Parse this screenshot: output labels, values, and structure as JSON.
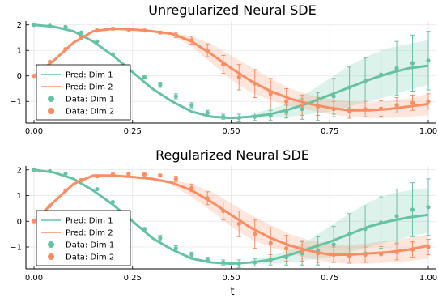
{
  "colors": {
    "dim1": "#66c2a5",
    "dim2": "#fc8d62"
  },
  "chart_data": [
    {
      "type": "line",
      "title": "Unregularized Neural SDE",
      "xlabel": "",
      "xlim": [
        0,
        1
      ],
      "ylim": [
        -1.85,
        2.15
      ],
      "xticks": [
        "0.00",
        "0.25",
        "0.50",
        "0.75",
        "1.00"
      ],
      "yticks": [
        "2",
        "1",
        "0",
        "−1"
      ],
      "grid": true,
      "legend_position": "bottom-left",
      "legend": [
        "Pred: Dim 1",
        "Pred: Dim 2",
        "Data: Dim 1",
        "Data: Dim 2"
      ],
      "pred": {
        "dim1": {
          "x": [
            0.0,
            0.05,
            0.1,
            0.15,
            0.2,
            0.25,
            0.3,
            0.35,
            0.4,
            0.45,
            0.5,
            0.55,
            0.6,
            0.65,
            0.7,
            0.75,
            0.8,
            0.85,
            0.9,
            0.95,
            1.0
          ],
          "y": [
            2.0,
            1.93,
            1.75,
            1.35,
            0.8,
            0.15,
            -0.5,
            -1.0,
            -1.4,
            -1.6,
            -1.65,
            -1.6,
            -1.5,
            -1.3,
            -1.05,
            -0.75,
            -0.45,
            -0.15,
            0.1,
            0.3,
            0.4
          ]
        },
        "dim2": {
          "x": [
            0.0,
            0.05,
            0.1,
            0.15,
            0.2,
            0.25,
            0.3,
            0.35,
            0.4,
            0.45,
            0.5,
            0.55,
            0.6,
            0.65,
            0.7,
            0.75,
            0.8,
            0.85,
            0.9,
            0.95,
            1.0
          ],
          "y": [
            0.0,
            0.6,
            1.3,
            1.75,
            1.85,
            1.82,
            1.75,
            1.65,
            1.35,
            0.85,
            0.3,
            -0.2,
            -0.6,
            -0.9,
            -1.1,
            -1.25,
            -1.35,
            -1.35,
            -1.3,
            -1.2,
            -1.1
          ]
        },
        "band1": {
          "x": [
            0.55,
            0.6,
            0.65,
            0.7,
            0.75,
            0.8,
            0.85,
            0.9,
            0.95,
            1.0
          ],
          "lo": [
            -1.65,
            -1.65,
            -1.6,
            -1.5,
            -1.4,
            -1.2,
            -1.0,
            -0.8,
            -0.55,
            -0.35
          ],
          "hi": [
            -1.5,
            -1.3,
            -1.05,
            -0.6,
            -0.1,
            0.4,
            0.8,
            1.1,
            1.25,
            1.4
          ]
        },
        "band2": {
          "x": [
            0.35,
            0.4,
            0.45,
            0.5,
            0.55,
            0.6,
            0.65,
            0.7,
            0.75,
            0.8,
            0.85,
            0.9,
            0.95,
            1.0
          ],
          "lo": [
            1.6,
            1.15,
            0.5,
            -0.15,
            -0.65,
            -0.95,
            -1.2,
            -1.35,
            -1.5,
            -1.6,
            -1.65,
            -1.65,
            -1.6,
            -1.55
          ],
          "hi": [
            1.7,
            1.55,
            1.25,
            0.8,
            0.35,
            -0.1,
            -0.5,
            -0.75,
            -0.9,
            -1.0,
            -1.05,
            -0.98,
            -0.88,
            -0.7
          ]
        }
      },
      "data": {
        "dim1": {
          "x": [
            0.0,
            0.04,
            0.08,
            0.12,
            0.16,
            0.2,
            0.24,
            0.28,
            0.32,
            0.36,
            0.4,
            0.44,
            0.48,
            0.52,
            0.56,
            0.6,
            0.64,
            0.68,
            0.72,
            0.76,
            0.8,
            0.84,
            0.88,
            0.92,
            0.96,
            1.0
          ],
          "y": [
            2.0,
            1.97,
            1.92,
            1.7,
            1.35,
            0.85,
            0.35,
            -0.05,
            -0.35,
            -0.8,
            -1.15,
            -1.45,
            -1.6,
            -1.65,
            -1.6,
            -1.55,
            -1.4,
            -1.3,
            -1.2,
            -0.8,
            -0.45,
            -0.2,
            0.05,
            0.3,
            0.5,
            0.6
          ],
          "err": [
            0,
            0,
            0,
            0,
            0,
            0,
            0.05,
            0.05,
            0.1,
            0.1,
            0.1,
            0.1,
            0.1,
            0.15,
            0.15,
            0.2,
            0.25,
            0.4,
            0.55,
            0.7,
            0.8,
            0.9,
            1.0,
            1.05,
            1.1,
            1.15
          ]
        },
        "dim2": {
          "x": [
            0.0,
            0.04,
            0.08,
            0.12,
            0.16,
            0.2,
            0.24,
            0.28,
            0.32,
            0.36,
            0.4,
            0.44,
            0.48,
            0.52,
            0.56,
            0.6,
            0.64,
            0.68,
            0.72,
            0.76,
            0.8,
            0.84,
            0.88,
            0.92,
            0.96,
            1.0
          ],
          "y": [
            0.0,
            0.55,
            1.05,
            1.5,
            1.78,
            1.85,
            1.82,
            1.78,
            1.7,
            1.6,
            1.4,
            1.0,
            0.45,
            -0.05,
            -0.3,
            -0.7,
            -1.0,
            -1.15,
            -1.2,
            -1.3,
            -1.38,
            -1.3,
            -1.28,
            -1.15,
            -1.05,
            -1.0
          ],
          "err": [
            0,
            0,
            0.05,
            0.05,
            0.05,
            0.05,
            0.05,
            0.05,
            0.05,
            0.1,
            0.15,
            0.25,
            0.35,
            0.5,
            0.55,
            0.6,
            0.5,
            0.4,
            0.35,
            0.3,
            0.28,
            0.3,
            0.3,
            0.3,
            0.3,
            0.3
          ]
        }
      }
    },
    {
      "type": "line",
      "title": "Regularized Neural SDE",
      "xlabel": "t",
      "xlim": [
        0,
        1
      ],
      "ylim": [
        -1.85,
        2.15
      ],
      "xticks": [
        "0.00",
        "0.25",
        "0.50",
        "0.75",
        "1.00"
      ],
      "yticks": [
        "2",
        "1",
        "0",
        "−1"
      ],
      "grid": true,
      "legend_position": "bottom-left",
      "legend": [
        "Pred: Dim 1",
        "Pred: Dim 2",
        "Data: Dim 1",
        "Data: Dim 2"
      ],
      "pred": {
        "dim1": {
          "x": [
            0.0,
            0.05,
            0.1,
            0.15,
            0.2,
            0.25,
            0.3,
            0.35,
            0.4,
            0.45,
            0.5,
            0.55,
            0.6,
            0.65,
            0.7,
            0.75,
            0.8,
            0.85,
            0.9,
            0.95,
            1.0
          ],
          "y": [
            2.0,
            1.9,
            1.65,
            1.2,
            0.65,
            0.0,
            -0.65,
            -1.1,
            -1.45,
            -1.6,
            -1.65,
            -1.6,
            -1.5,
            -1.3,
            -1.05,
            -0.8,
            -0.5,
            -0.2,
            0.0,
            0.15,
            0.25
          ]
        },
        "dim2": {
          "x": [
            0.0,
            0.05,
            0.1,
            0.15,
            0.2,
            0.25,
            0.3,
            0.35,
            0.4,
            0.45,
            0.5,
            0.55,
            0.6,
            0.65,
            0.7,
            0.75,
            0.8,
            0.85,
            0.9,
            0.95,
            1.0
          ],
          "y": [
            0.0,
            0.75,
            1.45,
            1.78,
            1.78,
            1.72,
            1.65,
            1.5,
            1.2,
            0.75,
            0.25,
            -0.25,
            -0.65,
            -0.95,
            -1.15,
            -1.3,
            -1.3,
            -1.25,
            -1.2,
            -1.1,
            -0.95
          ]
        },
        "band1": {
          "x": [
            0.55,
            0.6,
            0.65,
            0.7,
            0.75,
            0.8,
            0.85,
            0.9,
            0.95,
            1.0
          ],
          "lo": [
            -1.65,
            -1.65,
            -1.6,
            -1.5,
            -1.4,
            -1.2,
            -1.0,
            -0.8,
            -0.6,
            -0.45
          ],
          "hi": [
            -1.5,
            -1.35,
            -1.1,
            -0.7,
            -0.2,
            0.3,
            0.75,
            1.05,
            1.2,
            1.3
          ]
        },
        "band2": {
          "x": [
            0.35,
            0.4,
            0.45,
            0.5,
            0.55,
            0.6,
            0.65,
            0.7,
            0.75,
            0.8,
            0.85,
            0.9,
            0.95,
            1.0
          ],
          "lo": [
            1.4,
            0.95,
            0.4,
            -0.2,
            -0.7,
            -1.0,
            -1.25,
            -1.45,
            -1.6,
            -1.65,
            -1.65,
            -1.6,
            -1.55,
            -1.45
          ],
          "hi": [
            1.6,
            1.45,
            1.15,
            0.7,
            0.25,
            -0.15,
            -0.5,
            -0.75,
            -0.88,
            -0.92,
            -0.85,
            -0.75,
            -0.65,
            -0.5
          ]
        }
      },
      "data": {
        "dim1": {
          "x": [
            0.0,
            0.04,
            0.08,
            0.12,
            0.16,
            0.2,
            0.24,
            0.28,
            0.32,
            0.36,
            0.4,
            0.44,
            0.48,
            0.52,
            0.56,
            0.6,
            0.64,
            0.68,
            0.72,
            0.76,
            0.8,
            0.84,
            0.88,
            0.92,
            0.96,
            1.0
          ],
          "y": [
            2.0,
            1.95,
            1.85,
            1.6,
            1.25,
            0.75,
            0.2,
            -0.3,
            -0.65,
            -1.05,
            -1.3,
            -1.5,
            -1.6,
            -1.65,
            -1.6,
            -1.5,
            -1.4,
            -1.25,
            -1.15,
            -0.9,
            -0.5,
            -0.3,
            -0.05,
            0.2,
            0.45,
            0.55
          ],
          "err": [
            0,
            0,
            0,
            0,
            0,
            0,
            0.05,
            0.05,
            0.1,
            0.1,
            0.1,
            0.1,
            0.1,
            0.15,
            0.15,
            0.2,
            0.3,
            0.45,
            0.55,
            0.7,
            0.8,
            0.9,
            1.0,
            1.05,
            1.05,
            1.1
          ]
        },
        "dim2": {
          "x": [
            0.0,
            0.04,
            0.08,
            0.12,
            0.16,
            0.2,
            0.24,
            0.28,
            0.32,
            0.36,
            0.4,
            0.44,
            0.48,
            0.52,
            0.56,
            0.6,
            0.64,
            0.68,
            0.72,
            0.76,
            0.8,
            0.84,
            0.88,
            0.92,
            0.96,
            1.0
          ],
          "y": [
            0.0,
            0.6,
            1.2,
            1.6,
            1.75,
            1.82,
            1.85,
            1.82,
            1.78,
            1.65,
            1.3,
            0.9,
            0.4,
            -0.1,
            -0.5,
            -0.85,
            -1.05,
            -1.15,
            -1.25,
            -1.3,
            -1.35,
            -1.3,
            -1.28,
            -1.2,
            -1.1,
            -1.0
          ],
          "err": [
            0,
            0,
            0.05,
            0.05,
            0.05,
            0.05,
            0.05,
            0.05,
            0.05,
            0.1,
            0.15,
            0.25,
            0.35,
            0.5,
            0.55,
            0.6,
            0.5,
            0.4,
            0.35,
            0.3,
            0.28,
            0.3,
            0.3,
            0.3,
            0.3,
            0.3
          ]
        }
      }
    }
  ]
}
